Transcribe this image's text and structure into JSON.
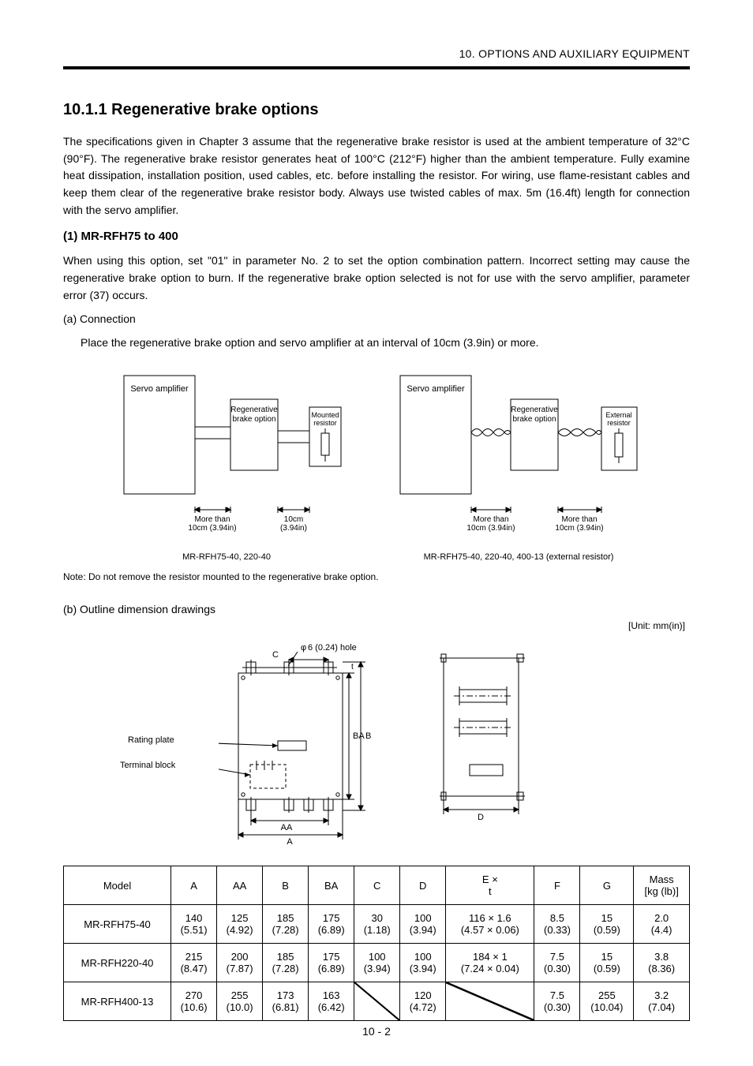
{
  "header": {
    "title": "10. OPTIONS AND AUXILIARY EQUIPMENT"
  },
  "section": {
    "number": "10.1.1",
    "title": "Regenerative brake options"
  },
  "caution_text": "The specifications given in Chapter 3 assume that the regenerative brake resistor is used at the ambient temperature of 32°C (90°F). The regenerative brake resistor generates heat of 100°C (212°F) higher than the ambient temperature. Fully examine heat dissipation, installation position, used cables, etc. before installing the resistor. For wiring, use flame-resistant cables and keep them clear of the regenerative brake resistor body. Always use twisted cables of max. 5m (16.4ft) length for connection with the servo amplifier.",
  "subsection": {
    "heading": "(1) MR-RFH75 to 400"
  },
  "combination_text": "When using this option, set \"01\" in parameter No. 2 to set the option combination pattern. Incorrect setting may cause the regenerative brake option to burn. If the regenerative brake option selected is not for use with the servo amplifier, parameter error (37) occurs.",
  "item_a": {
    "heading": "(a) Connection",
    "text": "Place the regenerative brake option and servo amplifier at an interval of 10cm (3.9in) or more."
  },
  "diagram1": {
    "servo": "Servo amplifier",
    "option": "Regenerative\nbrake option",
    "resistor": "Mounted\nresistor",
    "gap1": "More than\n10cm (3.94in)",
    "gap2": "10cm\n(3.94in)",
    "caption": "MR-RFH75-40, 220-40"
  },
  "diagram2": {
    "servo": "Servo amplifier",
    "option": "Regenerative\nbrake option",
    "resistor": "External\nresistor",
    "gap1": "More than\n10cm (3.94in)",
    "gap2": "More than\n10cm (3.94in)",
    "caption": "MR-RFH75-40, 220-40, 400-13 (external resistor)"
  },
  "note": "Note: Do not remove the resistor mounted to the regenerative brake option.",
  "item_b": {
    "heading": "(b) Outline dimension drawings",
    "unit": "[Unit: mm(in)]"
  },
  "outline": {
    "phi": "6 (0.24) hole",
    "rating_plate": "Rating plate",
    "terminal_block": "Terminal block",
    "dims": {
      "C": "C",
      "AA": "AA",
      "A": "A",
      "BA": "BA",
      "B": "B",
      "t": "t",
      "D": "D"
    }
  },
  "table": {
    "headers": [
      "Model",
      "A",
      "AA",
      "B",
      "BA",
      "C",
      "D",
      "E ×\nt",
      "F",
      "G",
      "Mass\n[kg (lb)]"
    ],
    "rows": [
      [
        "MR-RFH75-40",
        "140\n(5.51)",
        "125\n(4.92)",
        "185\n(7.28)",
        "175\n(6.89)",
        "30\n(1.18)",
        "100\n(3.94)",
        "116 × 1.6\n(4.57 × 0.06)",
        "8.5\n(0.33)",
        "15\n(0.59)",
        "2.0\n(4.4)"
      ],
      [
        "MR-RFH220-40",
        "215\n(8.47)",
        "200\n(7.87)",
        "185\n(7.28)",
        "175\n(6.89)",
        "100\n(3.94)",
        "100\n(3.94)",
        "184 × 1\n(7.24 × 0.04)",
        "7.5\n(0.30)",
        "15\n(0.59)",
        "3.8\n(8.36)"
      ],
      [
        "MR-RFH400-13",
        "270\n(10.6)",
        "255\n(10.0)",
        "173\n(6.81)",
        "163\n(6.42)",
        "",
        "120\n(4.72)",
        "",
        "7.5\n(0.30)",
        "255\n(10.04)",
        "3.2\n(7.04)"
      ]
    ]
  },
  "page_number": "10 - 2",
  "colors": {
    "text": "#000000",
    "bg": "#ffffff",
    "rule": "#000000",
    "table_border": "#000000"
  },
  "typography": {
    "body_fontsize_pt": 10.5,
    "title_fontsize_pt": 15,
    "header_fontsize_pt": 10.5,
    "caption_fontsize_pt": 9,
    "font_family": "Arial"
  }
}
